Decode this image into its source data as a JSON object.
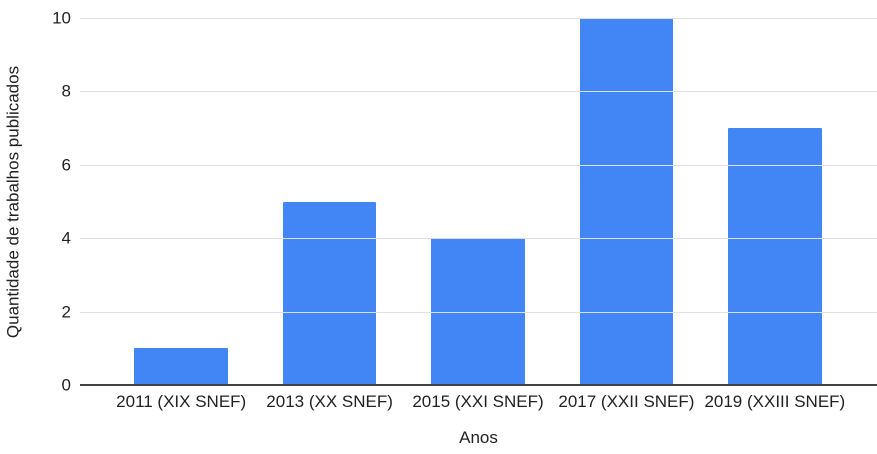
{
  "chart_data": {
    "type": "bar",
    "title": "",
    "categories": [
      "2011 (XIX SNEF)",
      "2013 (XX SNEF)",
      "2015 (XXI SNEF)",
      "2017 (XXII SNEF)",
      "2019 (XXIII SNEF)"
    ],
    "values": [
      1,
      5,
      4,
      10,
      7
    ],
    "xlabel": "Anos",
    "ylabel": "Quantidade de trabalhos publicados",
    "ylim": [
      0,
      10
    ],
    "yticks": [
      0,
      2,
      4,
      6,
      8,
      10
    ],
    "grid": true,
    "legend": "none",
    "colors": {
      "bar": "#4285f4",
      "gridline": "#e0e0e0",
      "baseline": "#424242",
      "text": "#222222",
      "background": "#ffffff"
    }
  }
}
